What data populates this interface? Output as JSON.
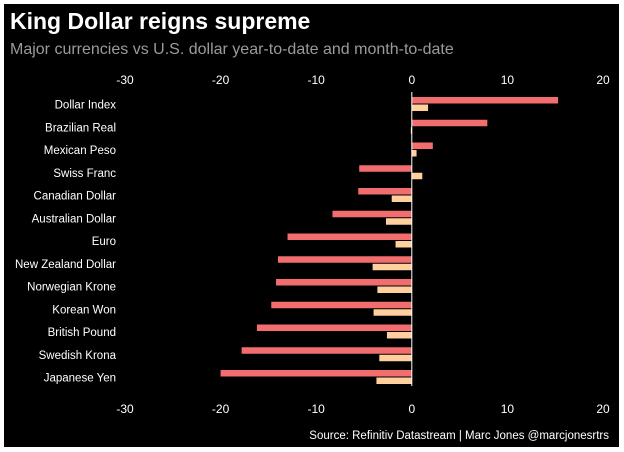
{
  "title": "King Dollar reigns supreme",
  "subtitle": "Major currencies vs U.S. dollar year-to-date and month-to-date",
  "source": "Source: Refinitiv Datastream | Marc Jones @marcjonesrtrs",
  "colors": {
    "background": "#000000",
    "ytd_bar": "#f26d6d",
    "mtd_bar": "#ffcf9e",
    "axis_text": "#ffffff",
    "subtitle_text": "#9b9b9b"
  },
  "chart_data": {
    "type": "bar",
    "orientation": "horizontal",
    "title": "King Dollar reigns supreme",
    "subtitle": "Major currencies vs U.S. dollar year-to-date and month-to-date",
    "categories": [
      "Dollar Index",
      "Brazilian Real",
      "Mexican Peso",
      "Swiss Franc",
      "Canadian Dollar",
      "Australian Dollar",
      "Euro",
      "New Zealand Dollar",
      "Norwegian Krone",
      "Korean Won",
      "British Pound",
      "Swedish Krona",
      "Japanese Yen"
    ],
    "series": [
      {
        "values": [
          15.3,
          7.9,
          2.2,
          -5.5,
          -5.6,
          -8.3,
          -13.0,
          -14.0,
          -14.2,
          -14.7,
          -16.2,
          -17.8,
          -20.0
        ],
        "color": "#f26d6d"
      },
      {
        "values": [
          1.7,
          -0.1,
          0.5,
          1.1,
          -2.1,
          -2.7,
          -1.7,
          -4.1,
          -3.6,
          -4.0,
          -2.6,
          -3.4,
          -3.7
        ],
        "color": "#ffcf9e"
      }
    ],
    "xlim": [
      -30,
      20
    ],
    "xticks": [
      -30,
      -20,
      -10,
      0,
      10,
      20
    ],
    "tick_labels": [
      "-30",
      "-20",
      "-10",
      "0",
      "10",
      "20"
    ],
    "axis_positions": "top and bottom",
    "grid": false,
    "legend": "none",
    "source": "Source: Refinitiv Datastream | Marc Jones @marcjonesrtrs"
  }
}
